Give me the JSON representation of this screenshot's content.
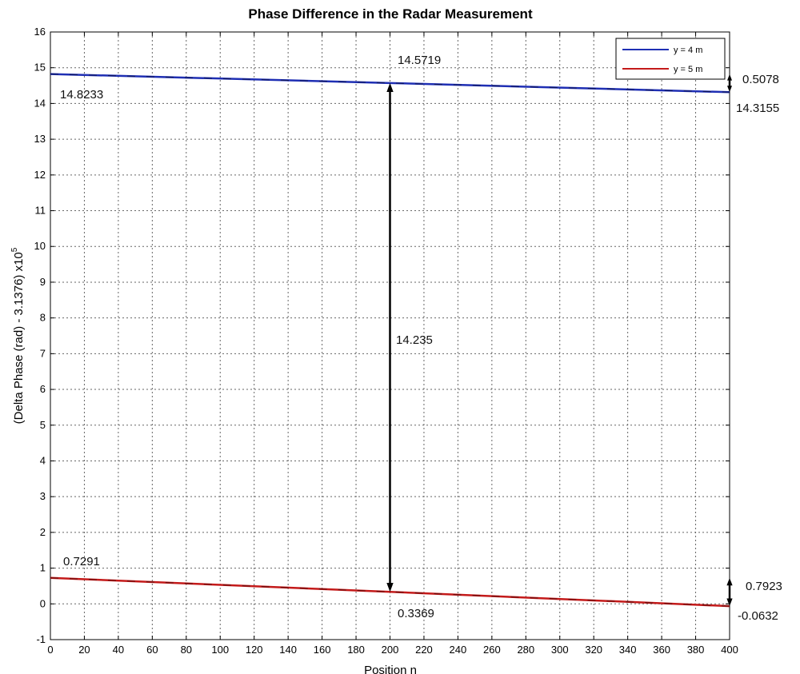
{
  "chart_data": {
    "type": "line",
    "title": "Phase Difference in the Radar Measurement",
    "xlabel": "Position n",
    "ylabel": "(Delta Phase (rad) - 3.1376) x10",
    "ylabel_exponent": "5",
    "xlim": [
      0,
      400
    ],
    "ylim": [
      -1,
      16
    ],
    "xticks": [
      0,
      20,
      40,
      60,
      80,
      100,
      120,
      140,
      160,
      180,
      200,
      220,
      240,
      260,
      280,
      300,
      320,
      340,
      360,
      380,
      400
    ],
    "yticks": [
      -1,
      0,
      1,
      2,
      3,
      4,
      5,
      6,
      7,
      8,
      9,
      10,
      11,
      12,
      13,
      14,
      15,
      16
    ],
    "grid": true,
    "legend_position": "top-right",
    "series": [
      {
        "name": "y = 4 m",
        "color": "#1f2fb4",
        "x": [
          0,
          200,
          400
        ],
        "y": [
          14.8233,
          14.5719,
          14.3155
        ]
      },
      {
        "name": "y = 5 m",
        "color": "#c41a1a",
        "x": [
          0,
          200,
          400
        ],
        "y": [
          0.7291,
          0.3369,
          -0.0632
        ]
      }
    ],
    "annotations": [
      {
        "text": "14.8233"
      },
      {
        "text": "14.5719"
      },
      {
        "text": "14.3155"
      },
      {
        "text": "0.5078"
      },
      {
        "text": "14.235"
      },
      {
        "text": "0.7291"
      },
      {
        "text": "0.3369"
      },
      {
        "text": "-0.0632"
      },
      {
        "text": "0.7923"
      }
    ]
  }
}
